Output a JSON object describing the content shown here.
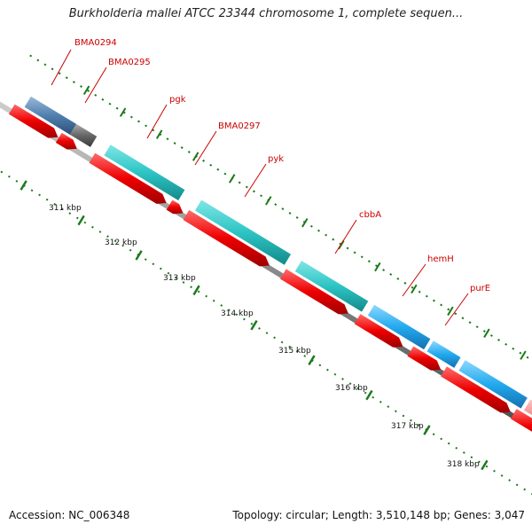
{
  "title": "Burkholderia mallei ATCC 23344 chromosome 1, complete sequen...",
  "accession": "Accession: NC_006348",
  "topology": "Topology: circular; Length: 3,510,148 bp; Genes: 3,047",
  "kbp_labels": [
    "311 kbp",
    "312 kbp",
    "313 kbp",
    "314 kbp",
    "315 kbp",
    "316 kbp",
    "317 kbp",
    "318 kbp"
  ],
  "gene_labels": [
    "BMA0294",
    "BMA0295",
    "pgk",
    "BMA0297",
    "pyk",
    "cbbA",
    "hemH",
    "purE"
  ],
  "colors": {
    "label": "#cc0000",
    "cds": "#ee0000",
    "gene_teal": "#2ec4c4",
    "gene_blue": "#22aaee",
    "gene_steel": "#5080b0",
    "gene_gray": "#666666",
    "gene_pink": "#ee8888",
    "backbone": "#888888",
    "ticks": "#1a7a1a"
  }
}
